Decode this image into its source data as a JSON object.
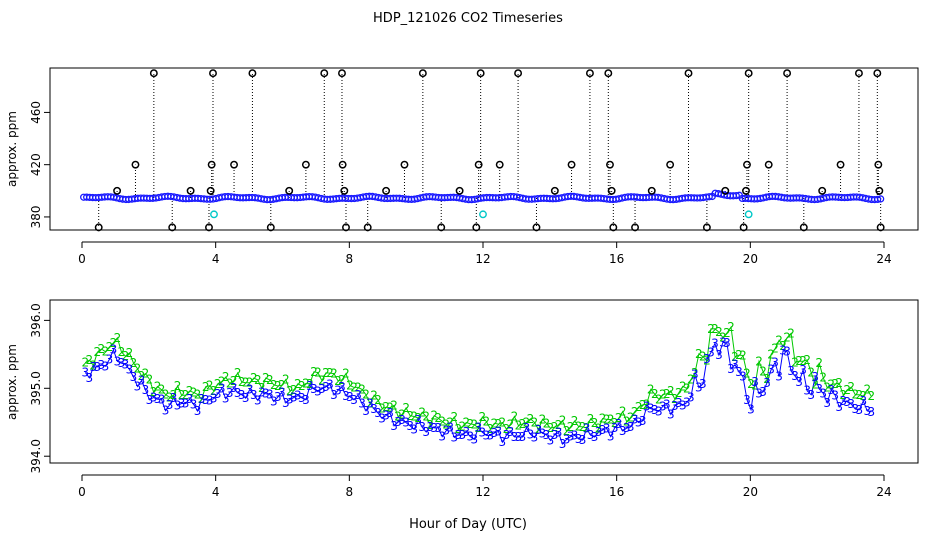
{
  "figure_title": "HDP_121026  CO2 Timeseries",
  "chart_data": [
    {
      "type": "scatter",
      "panel": "top",
      "title": "",
      "xlabel": "",
      "ylabel": "approx. ppm",
      "xlim": [
        0,
        24
      ],
      "ylim": [
        370,
        494
      ],
      "xticks": [
        0,
        4,
        8,
        12,
        16,
        20,
        24
      ],
      "yticks": [
        380,
        420,
        460
      ],
      "grid": false,
      "baseline_ppm": 394.5,
      "series": [
        {
          "marker": "blue circles (dense, ~394-396 ppm)",
          "color": "#0000ff",
          "values": "dense baseline near 394.5 ppm from hour 0.05 to 23.9"
        },
        {
          "marker": "cyan circles",
          "color": "#00c8c8",
          "points": [
            [
              3.95,
              382
            ],
            [
              12.0,
              382
            ],
            [
              19.95,
              382
            ]
          ]
        },
        {
          "marker": "black open circles (calibration spikes with dotted drop-lines)",
          "color": "#000000",
          "points": [
            [
              0.5,
              372
            ],
            [
              1.05,
              400
            ],
            [
              1.6,
              420
            ],
            [
              2.15,
              490
            ],
            [
              2.7,
              372
            ],
            [
              3.25,
              400
            ],
            [
              3.8,
              372
            ],
            [
              3.85,
              400
            ],
            [
              3.88,
              420
            ],
            [
              3.92,
              490
            ],
            [
              4.55,
              420
            ],
            [
              5.1,
              490
            ],
            [
              5.65,
              372
            ],
            [
              6.2,
              400
            ],
            [
              6.7,
              420
            ],
            [
              7.25,
              490
            ],
            [
              7.78,
              490
            ],
            [
              7.8,
              420
            ],
            [
              7.85,
              400
            ],
            [
              7.9,
              372
            ],
            [
              8.55,
              372
            ],
            [
              9.1,
              400
            ],
            [
              9.65,
              420
            ],
            [
              10.2,
              490
            ],
            [
              10.75,
              372
            ],
            [
              11.3,
              400
            ],
            [
              11.8,
              372
            ],
            [
              11.87,
              420
            ],
            [
              11.93,
              490
            ],
            [
              12.5,
              420
            ],
            [
              13.05,
              490
            ],
            [
              13.6,
              372
            ],
            [
              14.15,
              400
            ],
            [
              14.65,
              420
            ],
            [
              15.2,
              490
            ],
            [
              15.75,
              490
            ],
            [
              15.8,
              420
            ],
            [
              15.85,
              400
            ],
            [
              15.9,
              372
            ],
            [
              16.55,
              372
            ],
            [
              17.05,
              400
            ],
            [
              17.6,
              420
            ],
            [
              18.15,
              490
            ],
            [
              18.7,
              372
            ],
            [
              19.25,
              400
            ],
            [
              19.8,
              372
            ],
            [
              19.87,
              400
            ],
            [
              19.9,
              420
            ],
            [
              19.95,
              490
            ],
            [
              20.55,
              420
            ],
            [
              21.1,
              490
            ],
            [
              21.6,
              372
            ],
            [
              22.15,
              400
            ],
            [
              22.7,
              420
            ],
            [
              23.25,
              490
            ],
            [
              23.8,
              490
            ],
            [
              23.83,
              420
            ],
            [
              23.86,
              400
            ],
            [
              23.9,
              372
            ]
          ]
        }
      ]
    },
    {
      "type": "line",
      "panel": "bottom",
      "title": "",
      "xlabel": "Hour of Day (UTC)",
      "ylabel": "approx. ppm",
      "xlim": [
        0,
        24
      ],
      "ylim": [
        393.9,
        396.3
      ],
      "xticks": [
        0,
        4,
        8,
        12,
        16,
        20,
        24
      ],
      "yticks": [
        394.0,
        395.0,
        396.0
      ],
      "ytick_labels": [
        "394.0",
        "395.0",
        "396.0"
      ],
      "grid": false,
      "series": [
        {
          "marker": "2",
          "color": "#00c800",
          "x": [
            0,
            0.5,
            1,
            1.5,
            2,
            2.5,
            3,
            3.5,
            4,
            4.5,
            5,
            5.5,
            6,
            6.5,
            7,
            7.5,
            8,
            8.5,
            9,
            9.5,
            10,
            10.5,
            11,
            11.5,
            12,
            12.5,
            13,
            13.5,
            14,
            14.5,
            15,
            15.5,
            16,
            16.5,
            17,
            17.5,
            18,
            18.5,
            19,
            19.5,
            20,
            20.5,
            21,
            21.5,
            22,
            22.5,
            23,
            23.5
          ],
          "values": [
            395.3,
            395.5,
            395.7,
            395.4,
            395.1,
            394.9,
            394.95,
            394.9,
            395.05,
            395.15,
            395.1,
            395.1,
            395.05,
            395.0,
            395.2,
            395.2,
            395.1,
            394.9,
            394.75,
            394.65,
            394.6,
            394.55,
            394.5,
            394.45,
            394.5,
            394.45,
            394.5,
            394.5,
            394.45,
            394.45,
            394.45,
            394.5,
            394.55,
            394.6,
            394.9,
            394.9,
            394.95,
            395.4,
            395.9,
            395.7,
            395.1,
            395.3,
            395.8,
            395.4,
            395.2,
            395.05,
            394.95,
            394.9
          ]
        },
        {
          "marker": "3",
          "color": "#0000ff",
          "x": [
            0,
            0.5,
            1,
            1.5,
            2,
            2.5,
            3,
            3.5,
            4,
            4.5,
            5,
            5.5,
            6,
            6.5,
            7,
            7.5,
            8,
            8.5,
            9,
            9.5,
            10,
            10.5,
            11,
            11.5,
            12,
            12.5,
            13,
            13.5,
            14,
            14.5,
            15,
            15.5,
            16,
            16.5,
            17,
            17.5,
            18,
            18.5,
            19,
            19.5,
            20,
            20.5,
            21,
            21.5,
            22,
            22.5,
            23,
            23.5
          ],
          "values": [
            395.2,
            395.3,
            395.5,
            395.2,
            394.9,
            394.75,
            394.8,
            394.75,
            394.9,
            394.95,
            394.9,
            394.9,
            394.85,
            394.85,
            395.0,
            395.0,
            394.9,
            394.75,
            394.6,
            394.5,
            394.45,
            394.4,
            394.35,
            394.3,
            394.35,
            394.3,
            394.3,
            394.35,
            394.3,
            394.25,
            394.3,
            394.35,
            394.4,
            394.45,
            394.7,
            394.7,
            394.75,
            395.1,
            395.7,
            395.4,
            394.8,
            395.1,
            395.5,
            395.1,
            395.0,
            394.85,
            394.75,
            394.7
          ]
        }
      ]
    }
  ]
}
